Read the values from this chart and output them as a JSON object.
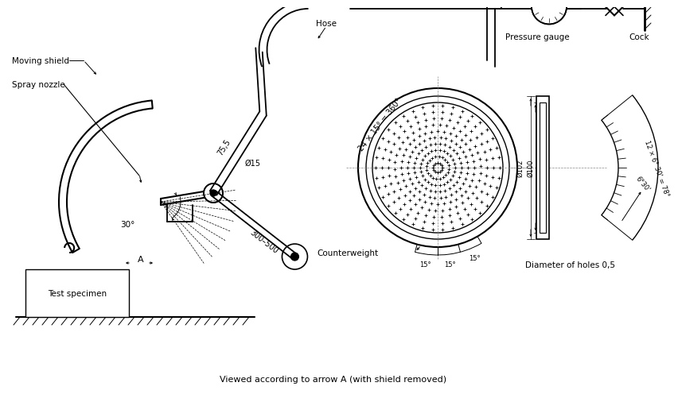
{
  "bg_color": "#ffffff",
  "line_color": "#000000",
  "labels": {
    "moving_shield": "Moving shield",
    "spray_nozzle": "Spray nozzle",
    "hose": "Hose",
    "pressure_gauge": "Pressure gauge",
    "cock": "Cock",
    "counterweight": "Counterweight",
    "test_specimen": "Test specimen",
    "diameter_holes": "Diameter of holes 0,5",
    "viewed": "Viewed according to arrow A (with shield removed)",
    "angle_note": "24 × 15° = 360°",
    "dim_75_5": "75,5",
    "dim_15": "Ø15",
    "dim_300_500": "300–500",
    "dim_30": "30°",
    "dim_102": "Ø102",
    "dim_100": "Ø100",
    "dim_6_30": "6°30'",
    "dim_12x6": "12 × 6° 30' = 78°",
    "dim_15a": "15°",
    "dim_15b": "15°",
    "dim_15c": "15°",
    "arrow_a": "A"
  }
}
